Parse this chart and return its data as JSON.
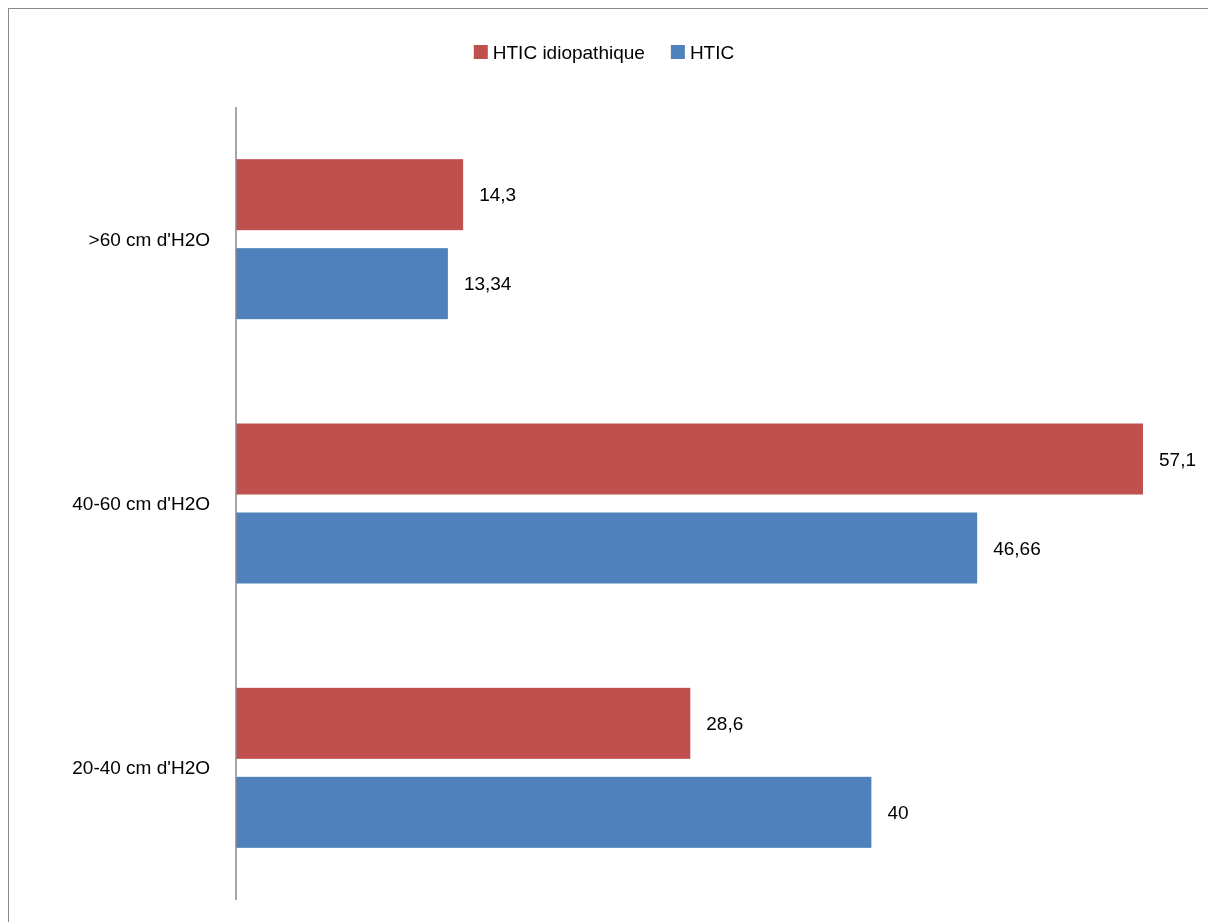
{
  "chart_data": {
    "type": "bar",
    "orientation": "horizontal",
    "categories": [
      ">60 cm d'H2O",
      "40-60 cm d'H2O",
      "20-40 cm d'H2O"
    ],
    "series": [
      {
        "name": "HTIC idiopathique",
        "color": "#c0504d",
        "values": [
          14.3,
          57.1,
          28.6
        ],
        "value_labels": [
          "14,3",
          "57,1",
          "28,6"
        ]
      },
      {
        "name": "HTIC",
        "color": "#4f81bd",
        "values": [
          13.34,
          46.66,
          40
        ],
        "value_labels": [
          "13,34",
          "46,66",
          "40"
        ]
      }
    ],
    "legend": "top",
    "grid": false,
    "tick_labels": "y"
  }
}
